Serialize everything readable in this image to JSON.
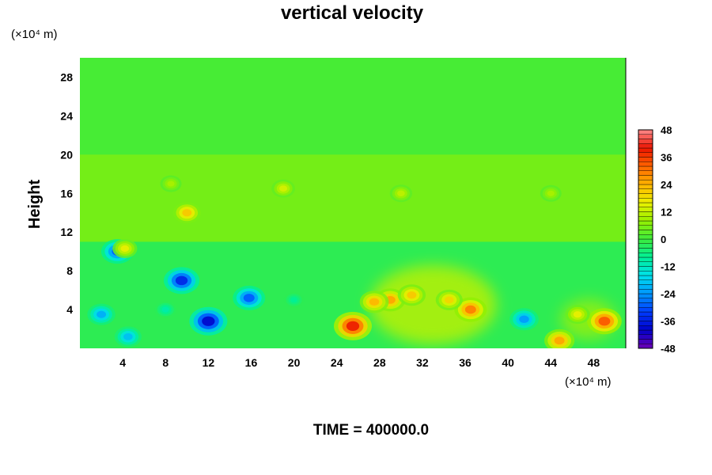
{
  "chart_data": {
    "type": "heatmap",
    "title": "vertical velocity",
    "xlabel": "",
    "ylabel": "Height",
    "x_unit": "(×10⁴ m)",
    "y_unit": "(×10⁴ m)",
    "xlim": [
      0,
      51
    ],
    "ylim": [
      0,
      30
    ],
    "x_ticks": [
      4,
      8,
      12,
      16,
      20,
      24,
      28,
      32,
      36,
      40,
      44,
      48
    ],
    "y_ticks": [
      4,
      8,
      12,
      16,
      20,
      24,
      28
    ],
    "colorbar": {
      "min": -48,
      "max": 48,
      "levels": 48,
      "ticks": [
        48,
        36,
        24,
        12,
        0,
        -12,
        -24,
        -36,
        -48
      ]
    },
    "features": [
      {
        "x": 25.5,
        "y": 2.3,
        "value": 40
      },
      {
        "x": 29.0,
        "y": 5.0,
        "value": 26
      },
      {
        "x": 27.5,
        "y": 4.8,
        "value": 24
      },
      {
        "x": 31.0,
        "y": 5.5,
        "value": 22
      },
      {
        "x": 36.5,
        "y": 4.0,
        "value": 30
      },
      {
        "x": 34.5,
        "y": 5.0,
        "value": 20
      },
      {
        "x": 49.0,
        "y": 2.8,
        "value": 34
      },
      {
        "x": 46.5,
        "y": 3.5,
        "value": 16
      },
      {
        "x": 44.8,
        "y": 0.8,
        "value": 26
      },
      {
        "x": 12.0,
        "y": 2.8,
        "value": -40
      },
      {
        "x": 9.5,
        "y": 7.0,
        "value": -36
      },
      {
        "x": 15.8,
        "y": 5.2,
        "value": -30
      },
      {
        "x": 2.0,
        "y": 3.5,
        "value": -22
      },
      {
        "x": 4.5,
        "y": 1.2,
        "value": -20
      },
      {
        "x": 41.5,
        "y": 3.0,
        "value": -24
      },
      {
        "x": 3.5,
        "y": 10.0,
        "value": -30
      },
      {
        "x": 4.2,
        "y": 10.3,
        "value": 16
      },
      {
        "x": 10.0,
        "y": 14.0,
        "value": 22
      },
      {
        "x": 19.0,
        "y": 16.5,
        "value": 14
      },
      {
        "x": 8.5,
        "y": 17.0,
        "value": 10
      },
      {
        "x": 30.0,
        "y": 16.0,
        "value": 12
      },
      {
        "x": 44.0,
        "y": 16.0,
        "value": 10
      },
      {
        "x": 20.0,
        "y": 5.0,
        "value": -8
      },
      {
        "x": 8.0,
        "y": 4.0,
        "value": -10
      }
    ]
  },
  "time_label": "TIME = 400000.0"
}
